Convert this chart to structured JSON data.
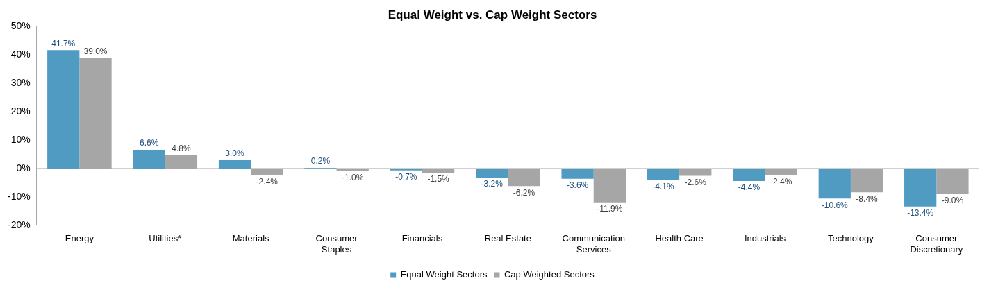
{
  "chart_data": {
    "type": "bar",
    "title": "Equal Weight vs. Cap Weight Sectors",
    "categories": [
      "Energy",
      "Utilities*",
      "Materials",
      "Consumer Staples",
      "Financials",
      "Real Estate",
      "Communication Services",
      "Health Care",
      "Industrials",
      "Technology",
      "Consumer Discretionary"
    ],
    "series": [
      {
        "name": "Equal Weight Sectors",
        "color": "#4f9bc2",
        "values": [
          41.7,
          6.6,
          3.0,
          0.2,
          -0.7,
          -3.2,
          -3.6,
          -4.1,
          -4.4,
          -10.6,
          -13.4
        ],
        "value_labels": [
          "41.7%",
          "6.6%",
          "3.0%",
          "0.2%",
          "-0.7%",
          "-3.2%",
          "-3.6%",
          "-4.1%",
          "-4.4%",
          "-10.6%",
          "-13.4%"
        ]
      },
      {
        "name": "Cap Weighted Sectors",
        "color": "#a6a6a6",
        "values": [
          39.0,
          4.8,
          -2.4,
          -1.0,
          -1.5,
          -6.2,
          -11.9,
          -2.6,
          -2.4,
          -8.4,
          -9.0
        ],
        "value_labels": [
          "39.0%",
          "4.8%",
          "-2.4%",
          "-1.0%",
          "-1.5%",
          "-6.2%",
          "-11.9%",
          "-2.6%",
          "-2.4%",
          "-8.4%",
          "-9.0%"
        ]
      }
    ],
    "ylim": [
      -20,
      50
    ],
    "yticks": [
      {
        "value": -20,
        "label": "-20%"
      },
      {
        "value": -10,
        "label": "-10%"
      },
      {
        "value": 0,
        "label": "0%"
      },
      {
        "value": 10,
        "label": "10%"
      },
      {
        "value": 20,
        "label": "20%"
      },
      {
        "value": 30,
        "label": "30%"
      },
      {
        "value": 40,
        "label": "40%"
      },
      {
        "value": 50,
        "label": "50%"
      }
    ],
    "ref_lines": [
      {
        "axis": "y",
        "value": 0,
        "color": "#a6a6a6"
      }
    ],
    "grid": false,
    "legend": "bottom"
  }
}
